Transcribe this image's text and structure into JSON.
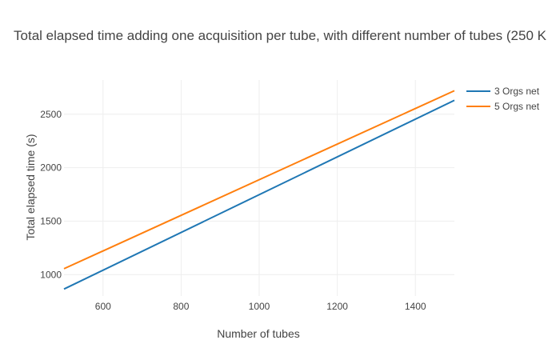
{
  "chart_data": {
    "type": "line",
    "title": "Total elapsed time adding one acquisition per tube, with different number of tubes (250 K",
    "xlabel": "Number of tubes",
    "ylabel": "Total elapsed time (s)",
    "xlim": [
      500,
      1500
    ],
    "ylim": [
      800,
      2820
    ],
    "x_ticks": [
      600,
      800,
      1000,
      1200,
      1400
    ],
    "y_ticks": [
      1000,
      1500,
      2000,
      2500
    ],
    "grid": true,
    "legend_position": "top-right",
    "series": [
      {
        "name": "3 Orgs net",
        "color": "#1f77b4",
        "x": [
          500,
          1500
        ],
        "y": [
          865,
          2630
        ]
      },
      {
        "name": "5 Orgs net",
        "color": "#ff7f0e",
        "x": [
          500,
          1500
        ],
        "y": [
          1055,
          2720
        ]
      }
    ]
  }
}
